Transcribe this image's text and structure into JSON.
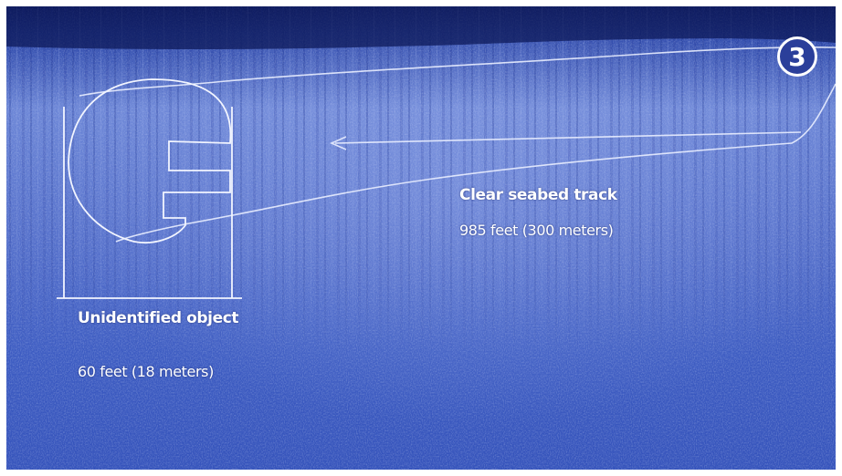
{
  "image": {
    "kind": "sonar seabed scan",
    "colors": {
      "background": "#3a5bc0",
      "annotation": "#ffffff"
    }
  },
  "badge": {
    "label": "3"
  },
  "annotations": {
    "track": {
      "title": "Clear seabed track",
      "size": "985 feet (300 meters)"
    },
    "object": {
      "title": "Unidentified object",
      "size": "60 feet (18 meters)"
    }
  }
}
